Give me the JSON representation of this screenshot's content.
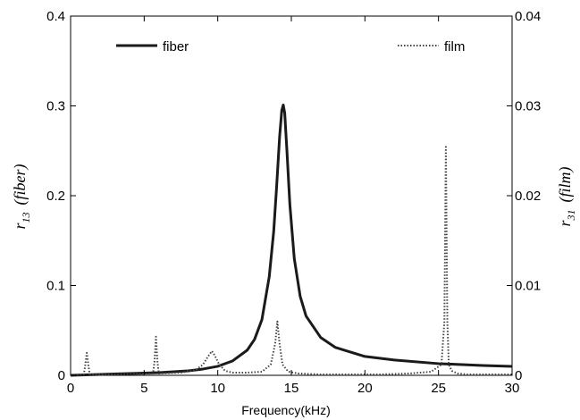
{
  "chart_data": {
    "type": "line",
    "xlabel": "Frequency(kHz)",
    "ylabel_left": {
      "main": "r",
      "sub": "13",
      "suffix": "(fiber)"
    },
    "ylabel_right": {
      "main": "r",
      "sub": "31",
      "suffix": "(film)"
    },
    "xlim": [
      0,
      30
    ],
    "ylim_left": [
      0,
      0.4
    ],
    "ylim_right": [
      0,
      0.04
    ],
    "x_ticks": [
      "0",
      "5",
      "10",
      "15",
      "20",
      "25",
      "30"
    ],
    "y_ticks_left": [
      "0",
      "0.1",
      "0.2",
      "0.3",
      "0.4"
    ],
    "y_ticks_right": [
      "0",
      "0.01",
      "0.02",
      "0.03",
      "0.04"
    ],
    "grid": false,
    "legend_placement": "top",
    "series": [
      {
        "name": "fiber",
        "axis": "left",
        "style": "solid",
        "color": "#1a1a1a",
        "x": [
          0,
          2,
          4,
          6,
          8,
          9,
          10,
          11,
          12,
          12.5,
          13,
          13.5,
          13.8,
          14.0,
          14.2,
          14.35,
          14.45,
          14.55,
          14.7,
          14.9,
          15.2,
          15.6,
          16,
          17,
          18,
          20,
          22,
          25,
          28,
          30
        ],
        "values": [
          0.0,
          0.001,
          0.002,
          0.003,
          0.005,
          0.007,
          0.01,
          0.016,
          0.028,
          0.04,
          0.062,
          0.11,
          0.16,
          0.21,
          0.265,
          0.295,
          0.301,
          0.292,
          0.25,
          0.19,
          0.13,
          0.088,
          0.066,
          0.042,
          0.031,
          0.021,
          0.017,
          0.013,
          0.011,
          0.01
        ]
      },
      {
        "name": "film",
        "axis": "right",
        "style": "dotted",
        "color": "#444444",
        "x": [
          0,
          0.9,
          1.0,
          1.1,
          1.2,
          1.3,
          3,
          5.6,
          5.7,
          5.8,
          5.9,
          6.0,
          7.5,
          8.5,
          9.0,
          9.3,
          9.6,
          9.8,
          10.1,
          10.5,
          11,
          12,
          13,
          13.6,
          13.9,
          14.05,
          14.2,
          14.4,
          14.8,
          15.5,
          17,
          19,
          21,
          23,
          24.5,
          25.2,
          25.4,
          25.5,
          25.6,
          25.7,
          25.9,
          26.3,
          27,
          28.5,
          30
        ],
        "values": [
          0.0,
          0.0001,
          0.0012,
          0.0025,
          0.0012,
          0.0001,
          0.0001,
          0.0002,
          0.0015,
          0.0043,
          0.0015,
          0.0002,
          0.0003,
          0.0006,
          0.0012,
          0.002,
          0.0027,
          0.0022,
          0.0012,
          0.0005,
          0.0003,
          0.0003,
          0.0004,
          0.0012,
          0.0035,
          0.006,
          0.0035,
          0.0012,
          0.0004,
          0.0002,
          0.0001,
          0.0001,
          0.0001,
          0.0002,
          0.0004,
          0.0012,
          0.006,
          0.0256,
          0.006,
          0.0012,
          0.0005,
          0.0002,
          0.0001,
          0.0001,
          0.0001
        ]
      }
    ]
  }
}
